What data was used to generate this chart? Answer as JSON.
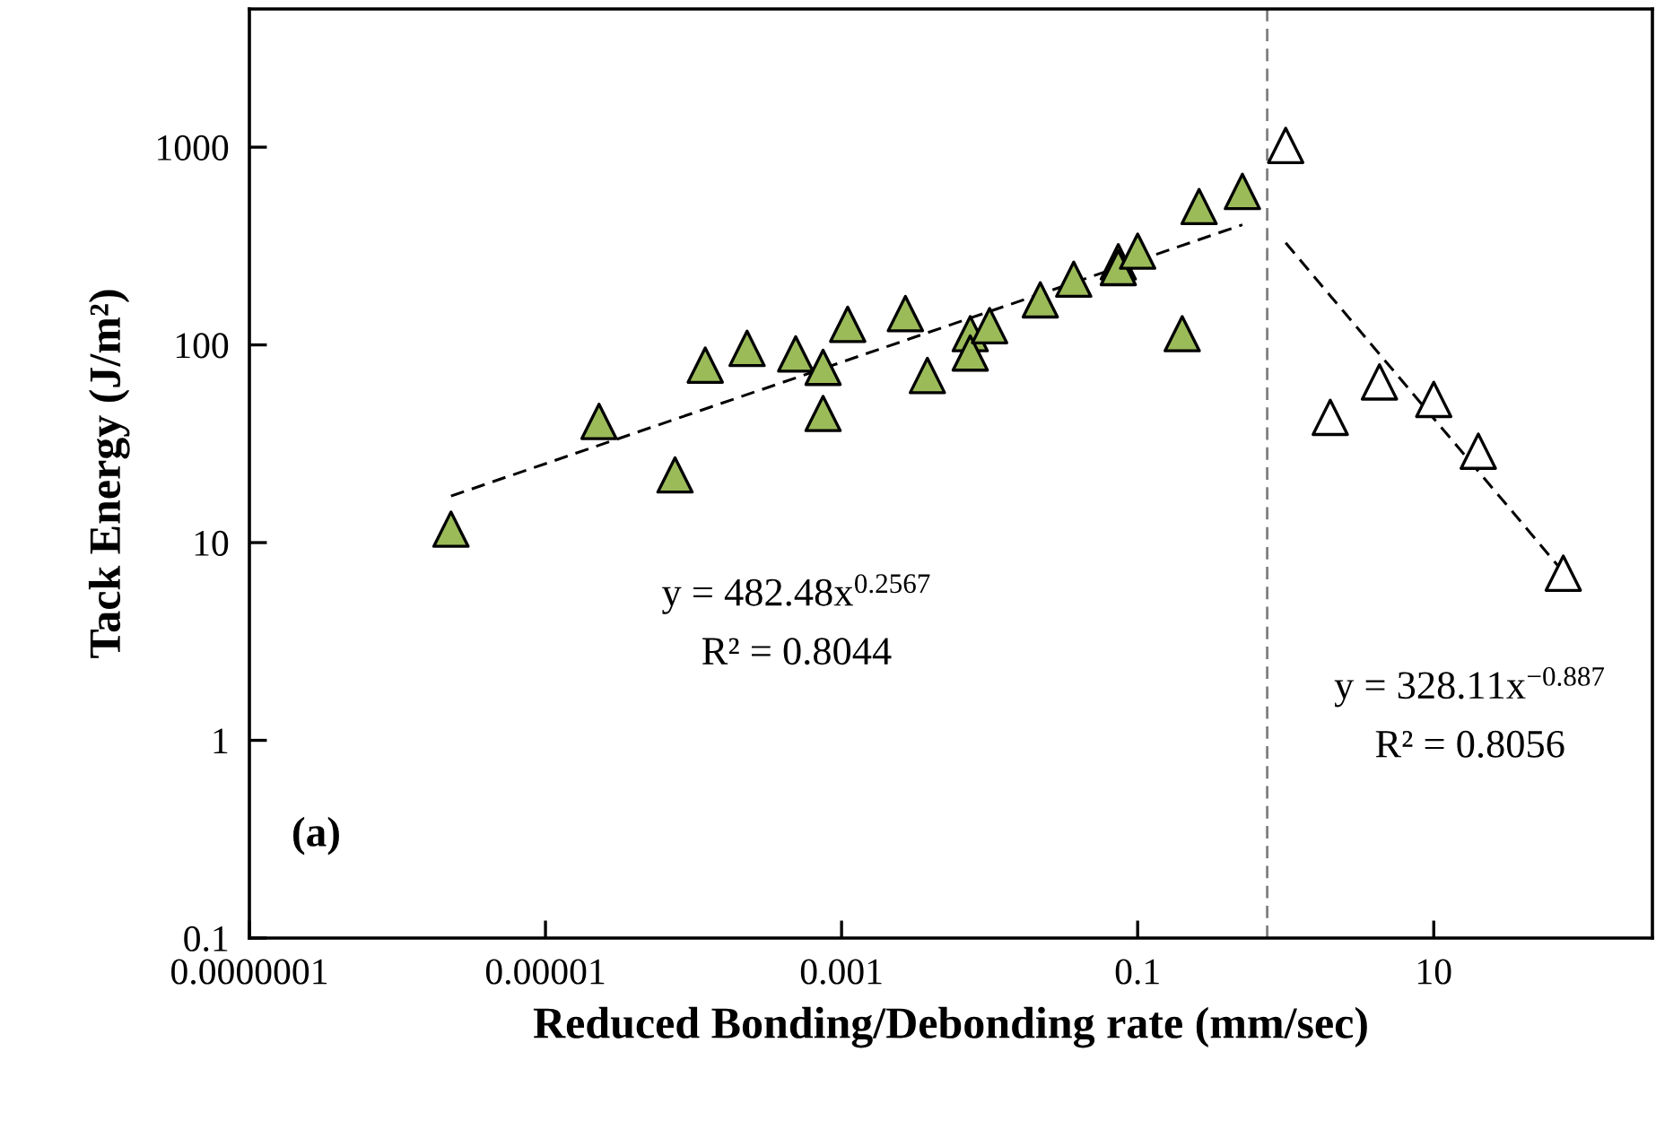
{
  "chart_data": {
    "type": "scatter",
    "xlabel": "Reduced Bonding/Debonding rate (mm/sec)",
    "ylabel": "Tack Energy (J/m²)",
    "log": "xy",
    "xlim": [
      1e-07,
      300
    ],
    "ylim": [
      0.1,
      5000
    ],
    "xticks": [
      {
        "value": 1e-07,
        "label": "0.0000001"
      },
      {
        "value": 1e-05,
        "label": "0.00001"
      },
      {
        "value": 0.001,
        "label": "0.001"
      },
      {
        "value": 0.1,
        "label": "0.1"
      },
      10
    ],
    "yticks": [
      0.1,
      1,
      10,
      100,
      1000
    ],
    "grid": false,
    "legend": false,
    "series": [
      {
        "marker": "triangle",
        "color": "#9bbb59",
        "x": [
          2.3e-06,
          2.3e-05,
          7.5e-05,
          0.00012,
          0.00023,
          0.00049,
          0.00075,
          0.00075,
          0.0011,
          0.0027,
          0.0038,
          0.0074,
          0.0074,
          0.01,
          0.022,
          0.037,
          0.074,
          0.074,
          0.1,
          0.2,
          0.26,
          0.51
        ],
        "values": [
          11.7,
          41,
          22,
          79,
          96,
          90,
          77,
          45,
          127,
          144,
          70,
          114,
          91,
          125,
          169,
          215,
          263,
          246,
          298,
          114,
          501,
          597
        ]
      },
      {
        "marker": "triangle",
        "color": "#ffffff",
        "x": [
          1.0,
          2.0,
          4.3,
          10,
          20,
          75
        ],
        "values": [
          1020,
          43,
          65,
          53,
          29,
          7.0
        ]
      },
      {
        "type": "line",
        "line_style": "dashed",
        "color": "#000000",
        "x": [
          2.3e-06,
          0.51
        ],
        "values": [
          17.2,
          405
        ]
      },
      {
        "type": "line",
        "line_style": "dashed",
        "color": "#000000",
        "x": [
          1.0,
          75
        ],
        "values": [
          328,
          7.1
        ]
      }
    ],
    "ref_lines": [
      {
        "axis": "x",
        "value": 0.75,
        "label": null,
        "color": "#7f7f7f",
        "line_style": "dashed"
      }
    ],
    "annotations": [
      "(a)",
      "y = 482.48x$^{0.2567}$",
      "R² = 0.8044",
      "y = 328.11x$^{−0.887}$",
      "R² = 0.8056"
    ]
  }
}
